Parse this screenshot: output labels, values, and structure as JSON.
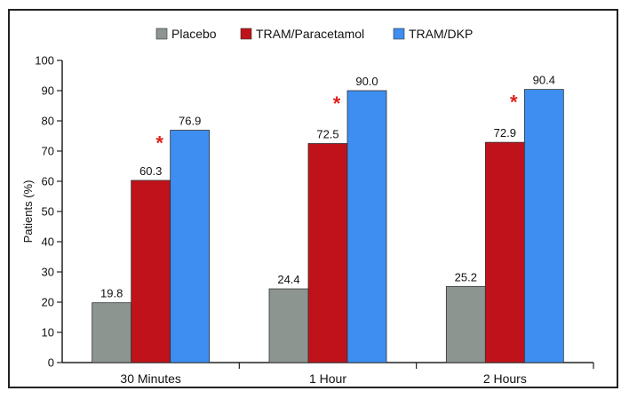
{
  "chart_data": {
    "type": "bar",
    "categories": [
      "30 Minutes",
      "1 Hour",
      "2 Hours"
    ],
    "series": [
      {
        "name": "Placebo",
        "color": "#8c9590",
        "values": [
          19.8,
          24.4,
          25.2
        ]
      },
      {
        "name": "TRAM/Paracetamol",
        "color": "#c0121a",
        "values": [
          60.3,
          72.5,
          72.9
        ]
      },
      {
        "name": "TRAM/DKP",
        "color": "#3d8ef0",
        "values": [
          76.9,
          90.0,
          90.4
        ]
      }
    ],
    "value_labels": [
      [
        "19.8",
        "24.4",
        "25.2"
      ],
      [
        "60.3",
        "72.5",
        "72.9"
      ],
      [
        "76.9",
        "90.0",
        "90.4"
      ]
    ],
    "significance_marker": "*",
    "significance_color": "#e0201a",
    "ylabel": "Patients (%)",
    "xlabel": "",
    "ylim": [
      0,
      100
    ],
    "yticks": [
      "0",
      "10",
      "20",
      "30",
      "40",
      "50",
      "60",
      "70",
      "80",
      "90",
      "100"
    ],
    "grid": false,
    "legend_position": "top-center"
  }
}
